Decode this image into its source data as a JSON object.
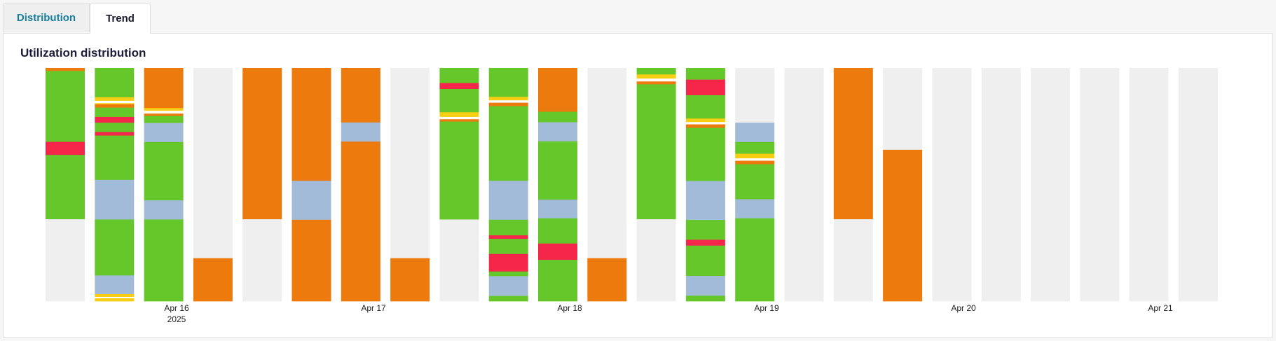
{
  "tabs": [
    {
      "label": "Distribution",
      "active": false
    },
    {
      "label": "Trend",
      "active": true
    }
  ],
  "chart_data": {
    "type": "bar",
    "title": "Utilization distribution",
    "stacked": true,
    "normalized": true,
    "x_tick_labels": [
      "Apr 16",
      "Apr 17",
      "Apr 18",
      "Apr 19",
      "Apr 20",
      "Apr 21"
    ],
    "x_secondary_label": "2025",
    "colors": {
      "orange": "#ec7a0c",
      "green": "#66c72a",
      "red": "#f5264a",
      "yellow": "#f6ce14",
      "white": "#ffffff",
      "blue": "#a1bbd9",
      "empty": "#efefef"
    },
    "bars": [
      {
        "segments": [
          [
            "orange",
            0.013
          ],
          [
            "green",
            0.304
          ],
          [
            "red",
            0.056
          ],
          [
            "green",
            0.276
          ],
          [
            "empty",
            0.351
          ]
        ]
      },
      {
        "segments": [
          [
            "green",
            0.126
          ],
          [
            "yellow",
            0.015
          ],
          [
            "white",
            0.01
          ],
          [
            "yellow",
            0.005
          ],
          [
            "orange",
            0.014
          ],
          [
            "green",
            0.04
          ],
          [
            "red",
            0.025
          ],
          [
            "green",
            0.04
          ],
          [
            "red",
            0.015
          ],
          [
            "green",
            0.19
          ],
          [
            "blue",
            0.17
          ],
          [
            "green",
            0.24
          ],
          [
            "blue",
            0.08
          ],
          [
            "yellow",
            0.012
          ],
          [
            "white",
            0.006
          ],
          [
            "yellow",
            0.012
          ]
        ]
      },
      {
        "segments": [
          [
            "orange",
            0.172
          ],
          [
            "yellow",
            0.012
          ],
          [
            "white",
            0.012
          ],
          [
            "orange",
            0.01
          ],
          [
            "green",
            0.03
          ],
          [
            "blue",
            0.082
          ],
          [
            "green",
            0.25
          ],
          [
            "blue",
            0.082
          ],
          [
            "green",
            0.35
          ]
        ]
      },
      {
        "segments": [
          [
            "empty",
            0.816
          ],
          [
            "orange",
            0.184
          ]
        ]
      },
      {
        "segments": [
          [
            "orange",
            0.649
          ],
          [
            "empty",
            0.351
          ]
        ]
      },
      {
        "segments": [
          [
            "orange",
            0.484
          ],
          [
            "blue",
            0.167
          ],
          [
            "orange",
            0.349
          ]
        ]
      },
      {
        "segments": [
          [
            "orange",
            0.234
          ],
          [
            "blue",
            0.082
          ],
          [
            "orange",
            0.684
          ]
        ]
      },
      {
        "segments": [
          [
            "empty",
            0.816
          ],
          [
            "orange",
            0.184
          ]
        ]
      },
      {
        "segments": [
          [
            "green",
            0.065
          ],
          [
            "red",
            0.025
          ],
          [
            "green",
            0.1
          ],
          [
            "yellow",
            0.02
          ],
          [
            "white",
            0.01
          ],
          [
            "orange",
            0.01
          ],
          [
            "green",
            0.42
          ],
          [
            "empty",
            0.35
          ]
        ]
      },
      {
        "segments": [
          [
            "green",
            0.124
          ],
          [
            "yellow",
            0.015
          ],
          [
            "white",
            0.01
          ],
          [
            "orange",
            0.015
          ],
          [
            "green",
            0.32
          ],
          [
            "blue",
            0.167
          ],
          [
            "green",
            0.067
          ],
          [
            "red",
            0.015
          ],
          [
            "green",
            0.065
          ],
          [
            "red",
            0.075
          ],
          [
            "green",
            0.02
          ],
          [
            "blue",
            0.085
          ],
          [
            "green",
            0.022
          ]
        ]
      },
      {
        "segments": [
          [
            "orange",
            0.188
          ],
          [
            "green",
            0.045
          ],
          [
            "blue",
            0.082
          ],
          [
            "green",
            0.25
          ],
          [
            "blue",
            0.08
          ],
          [
            "green",
            0.108
          ],
          [
            "red",
            0.07
          ],
          [
            "green",
            0.177
          ]
        ]
      },
      {
        "segments": [
          [
            "empty",
            0.816
          ],
          [
            "orange",
            0.184
          ]
        ]
      },
      {
        "segments": [
          [
            "green",
            0.028
          ],
          [
            "yellow",
            0.018
          ],
          [
            "white",
            0.012
          ],
          [
            "orange",
            0.012
          ],
          [
            "green",
            0.579
          ],
          [
            "empty",
            0.351
          ]
        ]
      },
      {
        "segments": [
          [
            "green",
            0.05
          ],
          [
            "red",
            0.067
          ],
          [
            "green",
            0.1
          ],
          [
            "yellow",
            0.015
          ],
          [
            "white",
            0.01
          ],
          [
            "orange",
            0.015
          ],
          [
            "green",
            0.228
          ],
          [
            "blue",
            0.167
          ],
          [
            "green",
            0.085
          ],
          [
            "red",
            0.025
          ],
          [
            "green",
            0.13
          ],
          [
            "blue",
            0.085
          ],
          [
            "green",
            0.023
          ]
        ]
      },
      {
        "segments": [
          [
            "empty",
            0.235
          ],
          [
            "blue",
            0.083
          ],
          [
            "green",
            0.05
          ],
          [
            "yellow",
            0.02
          ],
          [
            "white",
            0.01
          ],
          [
            "orange",
            0.015
          ],
          [
            "green",
            0.15
          ],
          [
            "blue",
            0.082
          ],
          [
            "green",
            0.355
          ]
        ]
      },
      {
        "segments": [
          [
            "empty",
            1.0
          ]
        ]
      },
      {
        "segments": [
          [
            "orange",
            0.649
          ],
          [
            "empty",
            0.351
          ]
        ]
      },
      {
        "segments": [
          [
            "empty",
            0.351
          ],
          [
            "orange",
            0.649
          ]
        ]
      },
      {
        "segments": [
          [
            "empty",
            1.0
          ]
        ]
      },
      {
        "segments": [
          [
            "empty",
            1.0
          ]
        ]
      },
      {
        "segments": [
          [
            "empty",
            1.0
          ]
        ]
      },
      {
        "segments": [
          [
            "empty",
            1.0
          ]
        ]
      },
      {
        "segments": [
          [
            "empty",
            1.0
          ]
        ]
      },
      {
        "segments": [
          [
            "empty",
            1.0
          ]
        ]
      }
    ]
  }
}
